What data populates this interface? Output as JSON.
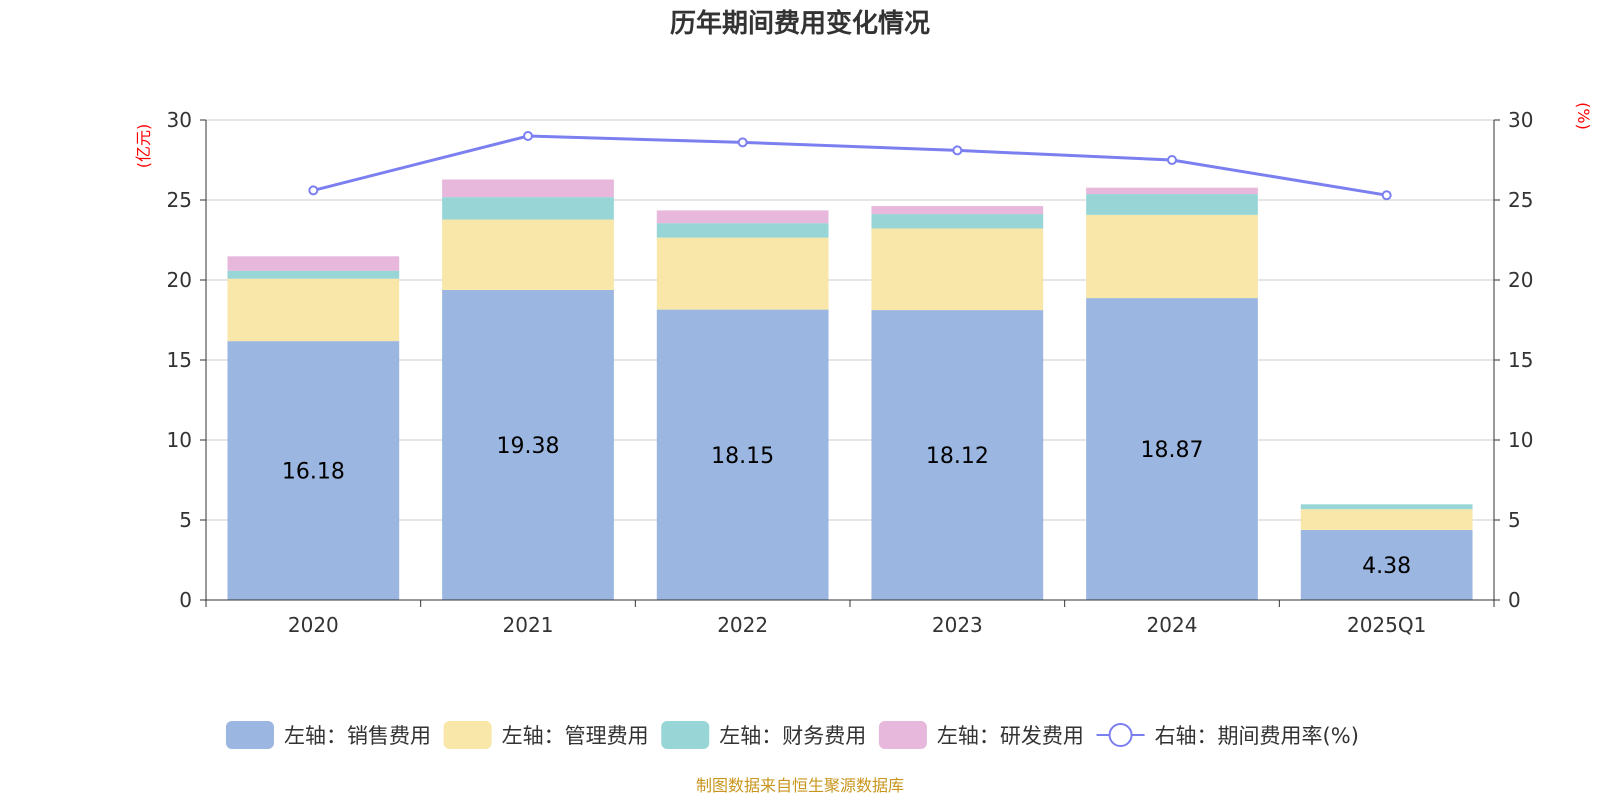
{
  "chart_data": {
    "type": "bar",
    "stacked": true,
    "title": "历年期间费用变化情况",
    "y_left_unit": "(亿元)",
    "y_right_unit": "(%)",
    "categories": [
      "2020",
      "2021",
      "2022",
      "2023",
      "2024",
      "2025Q1"
    ],
    "ylim_left": [
      0,
      30
    ],
    "ylim_right": [
      0,
      30
    ],
    "y_ticks_left": [
      "0",
      "5",
      "10",
      "15",
      "20",
      "25",
      "30"
    ],
    "y_ticks_right": [
      "0",
      "5",
      "10",
      "15",
      "20",
      "25",
      "30"
    ],
    "grid": true,
    "legend_position": "bottom",
    "series": [
      {
        "name": "左轴：销售费用",
        "axis": "left",
        "type": "bar",
        "color": "#9bb7e1",
        "values": [
          16.18,
          19.38,
          18.15,
          18.12,
          18.87,
          4.38
        ],
        "labels": [
          "16.18",
          "19.38",
          "18.15",
          "18.12",
          "18.87",
          "4.38"
        ]
      },
      {
        "name": "左轴：管理费用",
        "axis": "left",
        "type": "bar",
        "color": "#f8e7a8",
        "values": [
          3.9,
          4.4,
          4.5,
          5.1,
          5.2,
          1.3
        ]
      },
      {
        "name": "左轴：财务费用",
        "axis": "left",
        "type": "bar",
        "color": "#98d5d6",
        "values": [
          0.5,
          1.4,
          0.9,
          0.9,
          1.3,
          0.3
        ]
      },
      {
        "name": "左轴：研发费用",
        "axis": "left",
        "type": "bar",
        "color": "#e7b8dc",
        "values": [
          0.9,
          1.1,
          0.8,
          0.5,
          0.4,
          0.0
        ]
      },
      {
        "name": "右轴：期间费用率(%)",
        "axis": "right",
        "type": "line",
        "color": "#7b7ff0",
        "values": [
          25.6,
          29.0,
          28.6,
          28.1,
          27.5,
          25.3
        ]
      }
    ],
    "source": "制图数据来自恒生聚源数据库"
  }
}
